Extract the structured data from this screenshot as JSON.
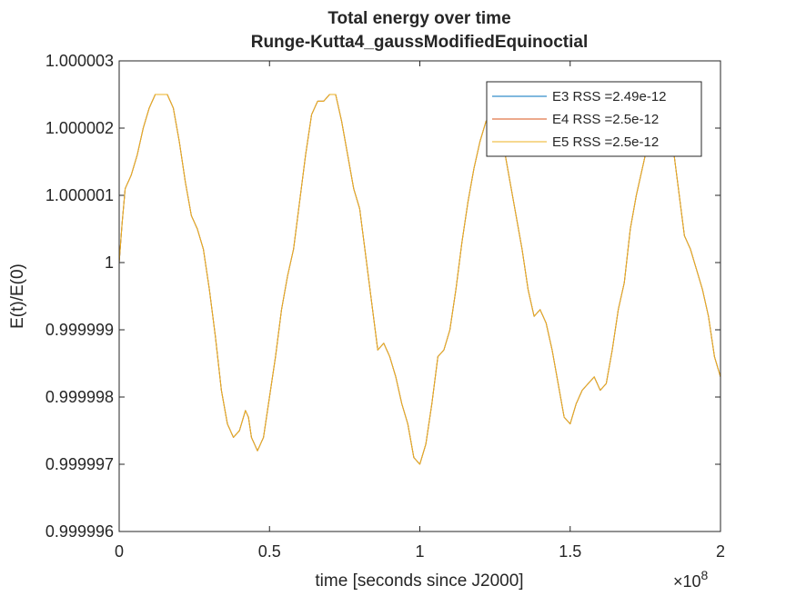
{
  "chart_data": {
    "type": "line",
    "title": "Total energy over time",
    "subtitle": "Runge-Kutta4_gaussModifiedEquinoctial",
    "xlabel": "time [seconds since J2000]",
    "ylabel": "E(t)/E(0)",
    "x_exponent_label": "×10",
    "x_exponent": "8",
    "xlim": [
      0,
      2
    ],
    "ylim": [
      0.999996,
      1.000003
    ],
    "xticks": [
      0,
      0.5,
      1,
      1.5,
      2
    ],
    "xtick_labels": [
      "0",
      "0.5",
      "1",
      "1.5",
      "2"
    ],
    "yticks": [
      0.999996,
      0.999997,
      0.999998,
      0.999999,
      1,
      1.000001,
      1.000002,
      1.000003
    ],
    "ytick_labels": [
      "0.999996",
      "0.999997",
      "0.999998",
      "0.999999",
      "1",
      "1.000001",
      "1.000002",
      "1.000003"
    ],
    "grid": false,
    "legend_placement": "top-right",
    "series": [
      {
        "name": "E3 RSS =2.49e-12",
        "color": "#0072BD"
      },
      {
        "name": "E4 RSS =2.5e-12",
        "color": "#D95319"
      },
      {
        "name": "E5 RSS =2.5e-12",
        "color": "#EDB120"
      }
    ],
    "x": [
      0,
      0.01,
      0.02,
      0.04,
      0.06,
      0.08,
      0.1,
      0.12,
      0.14,
      0.16,
      0.18,
      0.2,
      0.22,
      0.24,
      0.26,
      0.28,
      0.3,
      0.32,
      0.34,
      0.36,
      0.38,
      0.4,
      0.42,
      0.43,
      0.44,
      0.46,
      0.48,
      0.5,
      0.52,
      0.54,
      0.56,
      0.58,
      0.6,
      0.62,
      0.64,
      0.66,
      0.68,
      0.7,
      0.72,
      0.74,
      0.76,
      0.78,
      0.8,
      0.82,
      0.84,
      0.86,
      0.88,
      0.9,
      0.92,
      0.94,
      0.96,
      0.98,
      1.0,
      1.02,
      1.04,
      1.06,
      1.08,
      1.1,
      1.12,
      1.14,
      1.16,
      1.18,
      1.2,
      1.22,
      1.24,
      1.26,
      1.28,
      1.3,
      1.32,
      1.34,
      1.36,
      1.38,
      1.4,
      1.42,
      1.44,
      1.46,
      1.48,
      1.5,
      1.52,
      1.54,
      1.56,
      1.58,
      1.6,
      1.62,
      1.64,
      1.66,
      1.68,
      1.7,
      1.72,
      1.74,
      1.76,
      1.78,
      1.8,
      1.82,
      1.84,
      1.86,
      1.88,
      1.9,
      1.92,
      1.94,
      1.96,
      1.98,
      2.0
    ],
    "y_series_shared": [
      1.0,
      1.0000006,
      1.0000011,
      1.0000013,
      1.0000016,
      1.000002,
      1.0000023,
      1.0000025,
      1.0000025,
      1.0000025,
      1.0000023,
      1.0000018,
      1.0000012,
      1.0000007,
      1.0000005,
      1.0000002,
      0.9999996,
      0.9999989,
      0.9999981,
      0.9999976,
      0.9999974,
      0.9999975,
      0.9999978,
      0.9999977,
      0.9999974,
      0.9999972,
      0.9999974,
      0.999998,
      0.9999986,
      0.9999993,
      0.9999998,
      1.0000002,
      1.0000009,
      1.0000016,
      1.0000022,
      1.0000024,
      1.0000024,
      1.0000025,
      1.0000025,
      1.0000021,
      1.0000016,
      1.0000011,
      1.0000008,
      1.0000001,
      0.9999994,
      0.9999987,
      0.9999988,
      0.9999986,
      0.9999983,
      0.9999979,
      0.9999976,
      0.9999971,
      0.999997,
      0.9999973,
      0.9999979,
      0.9999986,
      0.9999987,
      0.999999,
      0.9999996,
      1.0000003,
      1.0000009,
      1.0000014,
      1.0000018,
      1.0000021,
      1.0000022,
      1.0000021,
      1.0000017,
      1.0000012,
      1.0000007,
      1.0000002,
      0.9999996,
      0.9999992,
      0.9999993,
      0.9999991,
      0.9999987,
      0.9999982,
      0.9999977,
      0.9999976,
      0.9999979,
      0.9999981,
      0.9999982,
      0.9999983,
      0.9999981,
      0.9999982,
      0.9999987,
      0.9999993,
      0.9999997,
      1.0000005,
      1.000001,
      1.0000014,
      1.0000018,
      1.0000021,
      1.0000023,
      1.0000022,
      1.0000018,
      1.0000011,
      1.0000004,
      1.0000002,
      0.9999999,
      0.9999996,
      0.9999992,
      0.9999986,
      0.9999983
    ]
  }
}
